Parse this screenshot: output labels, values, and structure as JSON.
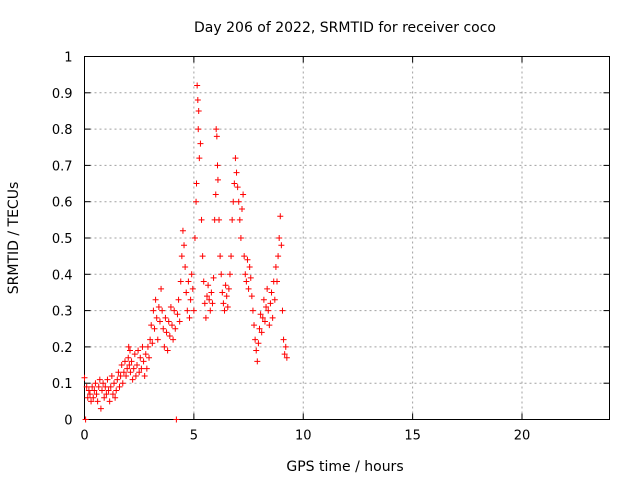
{
  "chart_data": {
    "type": "scatter",
    "title": "Day 206 of 2022, SRMTID for receiver coco",
    "xlabel": "GPS time / hours",
    "ylabel": "SRMTID / TECUs",
    "xlim": [
      0,
      24
    ],
    "ylim": [
      0,
      1
    ],
    "xticks": [
      0,
      5,
      10,
      15,
      20
    ],
    "xtick_labels": [
      "0",
      "5",
      "10",
      "15",
      "20"
    ],
    "yticks": [
      0,
      0.1,
      0.2,
      0.3,
      0.4,
      0.5,
      0.6,
      0.7,
      0.8,
      0.9,
      1
    ],
    "ytick_labels": [
      "0",
      "0.1",
      "0.2",
      "0.3",
      "0.4",
      "0.5",
      "0.6",
      "0.7",
      "0.8",
      "0.9",
      "1"
    ],
    "grid": true,
    "marker": "+",
    "color": "#ff0000",
    "series": [
      {
        "name": "SRMTID",
        "points": [
          [
            0.0,
            0.115
          ],
          [
            0.05,
            0.0
          ],
          [
            0.1,
            0.09
          ],
          [
            0.15,
            0.06
          ],
          [
            0.2,
            0.08
          ],
          [
            0.25,
            0.07
          ],
          [
            0.3,
            0.05
          ],
          [
            0.35,
            0.09
          ],
          [
            0.4,
            0.06
          ],
          [
            0.45,
            0.08
          ],
          [
            0.5,
            0.1
          ],
          [
            0.55,
            0.07
          ],
          [
            0.6,
            0.05
          ],
          [
            0.65,
            0.09
          ],
          [
            0.7,
            0.11
          ],
          [
            0.75,
            0.03
          ],
          [
            0.8,
            0.08
          ],
          [
            0.85,
            0.1
          ],
          [
            0.9,
            0.06
          ],
          [
            0.95,
            0.09
          ],
          [
            1.0,
            0.07
          ],
          [
            1.05,
            0.11
          ],
          [
            1.1,
            0.08
          ],
          [
            1.15,
            0.05
          ],
          [
            1.2,
            0.09
          ],
          [
            1.25,
            0.12
          ],
          [
            1.3,
            0.07
          ],
          [
            1.35,
            0.1
          ],
          [
            1.4,
            0.06
          ],
          [
            1.45,
            0.08
          ],
          [
            1.5,
            0.11
          ],
          [
            1.55,
            0.13
          ],
          [
            1.6,
            0.09
          ],
          [
            1.65,
            0.12
          ],
          [
            1.7,
            0.15
          ],
          [
            1.75,
            0.1
          ],
          [
            1.8,
            0.13
          ],
          [
            1.85,
            0.16
          ],
          [
            1.9,
            0.12
          ],
          [
            1.95,
            0.14
          ],
          [
            2.0,
            0.17
          ],
          [
            2.02,
            0.2
          ],
          [
            2.05,
            0.15
          ],
          [
            2.08,
            0.19
          ],
          [
            2.1,
            0.13
          ],
          [
            2.15,
            0.16
          ],
          [
            2.2,
            0.11
          ],
          [
            2.25,
            0.14
          ],
          [
            2.3,
            0.18
          ],
          [
            2.35,
            0.12
          ],
          [
            2.4,
            0.15
          ],
          [
            2.45,
            0.19
          ],
          [
            2.5,
            0.13
          ],
          [
            2.55,
            0.17
          ],
          [
            2.6,
            0.14
          ],
          [
            2.65,
            0.2
          ],
          [
            2.7,
            0.16
          ],
          [
            2.75,
            0.12
          ],
          [
            2.8,
            0.18
          ],
          [
            2.85,
            0.14
          ],
          [
            2.9,
            0.2
          ],
          [
            2.95,
            0.17
          ],
          [
            3.0,
            0.22
          ],
          [
            3.05,
            0.26
          ],
          [
            3.1,
            0.21
          ],
          [
            3.15,
            0.3
          ],
          [
            3.2,
            0.25
          ],
          [
            3.25,
            0.33
          ],
          [
            3.3,
            0.28
          ],
          [
            3.35,
            0.22
          ],
          [
            3.4,
            0.31
          ],
          [
            3.45,
            0.27
          ],
          [
            3.5,
            0.36
          ],
          [
            3.55,
            0.3
          ],
          [
            3.6,
            0.25
          ],
          [
            3.65,
            0.2
          ],
          [
            3.7,
            0.28
          ],
          [
            3.75,
            0.24
          ],
          [
            3.8,
            0.19
          ],
          [
            3.85,
            0.27
          ],
          [
            3.9,
            0.23
          ],
          [
            3.95,
            0.31
          ],
          [
            4.0,
            0.26
          ],
          [
            4.05,
            0.22
          ],
          [
            4.1,
            0.3
          ],
          [
            4.15,
            0.25
          ],
          [
            4.2,
            0.0
          ],
          [
            4.25,
            0.29
          ],
          [
            4.3,
            0.33
          ],
          [
            4.35,
            0.27
          ],
          [
            4.4,
            0.38
          ],
          [
            4.45,
            0.45
          ],
          [
            4.5,
            0.52
          ],
          [
            4.55,
            0.48
          ],
          [
            4.6,
            0.42
          ],
          [
            4.65,
            0.35
          ],
          [
            4.7,
            0.3
          ],
          [
            4.75,
            0.38
          ],
          [
            4.8,
            0.28
          ],
          [
            4.85,
            0.33
          ],
          [
            4.9,
            0.4
          ],
          [
            4.95,
            0.36
          ],
          [
            5.0,
            0.3
          ],
          [
            5.05,
            0.5
          ],
          [
            5.1,
            0.6
          ],
          [
            5.12,
            0.65
          ],
          [
            5.15,
            0.92
          ],
          [
            5.18,
            0.88
          ],
          [
            5.2,
            0.8
          ],
          [
            5.22,
            0.85
          ],
          [
            5.25,
            0.72
          ],
          [
            5.3,
            0.76
          ],
          [
            5.35,
            0.55
          ],
          [
            5.4,
            0.45
          ],
          [
            5.45,
            0.38
          ],
          [
            5.5,
            0.32
          ],
          [
            5.55,
            0.28
          ],
          [
            5.6,
            0.34
          ],
          [
            5.65,
            0.37
          ],
          [
            5.7,
            0.33
          ],
          [
            5.75,
            0.3
          ],
          [
            5.8,
            0.35
          ],
          [
            5.85,
            0.32
          ],
          [
            5.9,
            0.39
          ],
          [
            5.95,
            0.55
          ],
          [
            6.0,
            0.62
          ],
          [
            6.02,
            0.8
          ],
          [
            6.05,
            0.78
          ],
          [
            6.08,
            0.7
          ],
          [
            6.1,
            0.66
          ],
          [
            6.15,
            0.55
          ],
          [
            6.2,
            0.45
          ],
          [
            6.25,
            0.4
          ],
          [
            6.3,
            0.35
          ],
          [
            6.35,
            0.32
          ],
          [
            6.4,
            0.3
          ],
          [
            6.45,
            0.37
          ],
          [
            6.5,
            0.34
          ],
          [
            6.55,
            0.31
          ],
          [
            6.6,
            0.36
          ],
          [
            6.65,
            0.4
          ],
          [
            6.7,
            0.45
          ],
          [
            6.75,
            0.55
          ],
          [
            6.8,
            0.6
          ],
          [
            6.85,
            0.65
          ],
          [
            6.9,
            0.72
          ],
          [
            6.95,
            0.68
          ],
          [
            7.0,
            0.64
          ],
          [
            7.05,
            0.6
          ],
          [
            7.1,
            0.55
          ],
          [
            7.15,
            0.5
          ],
          [
            7.2,
            0.58
          ],
          [
            7.25,
            0.62
          ],
          [
            7.3,
            0.45
          ],
          [
            7.35,
            0.4
          ],
          [
            7.4,
            0.38
          ],
          [
            7.45,
            0.44
          ],
          [
            7.5,
            0.36
          ],
          [
            7.55,
            0.42
          ],
          [
            7.6,
            0.39
          ],
          [
            7.65,
            0.34
          ],
          [
            7.7,
            0.3
          ],
          [
            7.75,
            0.26
          ],
          [
            7.8,
            0.22
          ],
          [
            7.85,
            0.19
          ],
          [
            7.9,
            0.16
          ],
          [
            7.95,
            0.21
          ],
          [
            8.0,
            0.25
          ],
          [
            8.05,
            0.29
          ],
          [
            8.1,
            0.24
          ],
          [
            8.15,
            0.28
          ],
          [
            8.2,
            0.33
          ],
          [
            8.25,
            0.27
          ],
          [
            8.3,
            0.31
          ],
          [
            8.35,
            0.36
          ],
          [
            8.4,
            0.3
          ],
          [
            8.45,
            0.26
          ],
          [
            8.5,
            0.32
          ],
          [
            8.55,
            0.35
          ],
          [
            8.6,
            0.28
          ],
          [
            8.65,
            0.38
          ],
          [
            8.7,
            0.33
          ],
          [
            8.75,
            0.42
          ],
          [
            8.8,
            0.38
          ],
          [
            8.85,
            0.45
          ],
          [
            8.9,
            0.5
          ],
          [
            8.95,
            0.56
          ],
          [
            9.0,
            0.48
          ],
          [
            9.05,
            0.3
          ],
          [
            9.1,
            0.22
          ],
          [
            9.15,
            0.18
          ],
          [
            9.2,
            0.2
          ],
          [
            9.25,
            0.17
          ]
        ]
      }
    ]
  }
}
